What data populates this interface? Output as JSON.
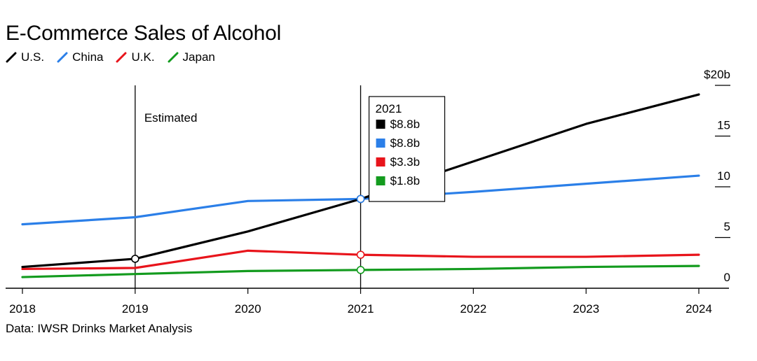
{
  "title": "E-Commerce Sales of Alcohol",
  "source": "Data: IWSR Drinks Market Analysis",
  "annotation": "Estimated",
  "chart_data": {
    "type": "line",
    "title": "E-Commerce Sales of Alcohol",
    "x": [
      "2018",
      "2019",
      "2020",
      "2021",
      "2022",
      "2023",
      "2024"
    ],
    "ylim": [
      0,
      20
    ],
    "y_ticks": [
      "$20b",
      "15",
      "10",
      "5",
      "0"
    ],
    "y_tick_values": [
      20,
      15,
      10,
      5,
      0
    ],
    "grid": false,
    "series": [
      {
        "name": "U.S.",
        "color": "#000000",
        "values": [
          2.1,
          2.9,
          5.6,
          8.8,
          12.5,
          16.2,
          19.1
        ]
      },
      {
        "name": "China",
        "color": "#2b7fe8",
        "values": [
          6.3,
          7.0,
          8.6,
          8.8,
          9.5,
          10.3,
          11.1
        ]
      },
      {
        "name": "U.K.",
        "color": "#e8141b",
        "values": [
          1.9,
          2.0,
          3.7,
          3.3,
          3.1,
          3.1,
          3.3
        ]
      },
      {
        "name": "Japan",
        "color": "#139b1e",
        "values": [
          1.1,
          1.4,
          1.7,
          1.8,
          1.9,
          2.1,
          2.2
        ]
      }
    ],
    "highlight": {
      "label": "2021",
      "x_index": 3,
      "entries": [
        {
          "series": "U.S.",
          "text": "$8.8b"
        },
        {
          "series": "China",
          "text": "$8.8b"
        },
        {
          "series": "U.K.",
          "text": "$3.3b"
        },
        {
          "series": "Japan",
          "text": "$1.8b"
        }
      ]
    },
    "estimated_from": "2019"
  }
}
